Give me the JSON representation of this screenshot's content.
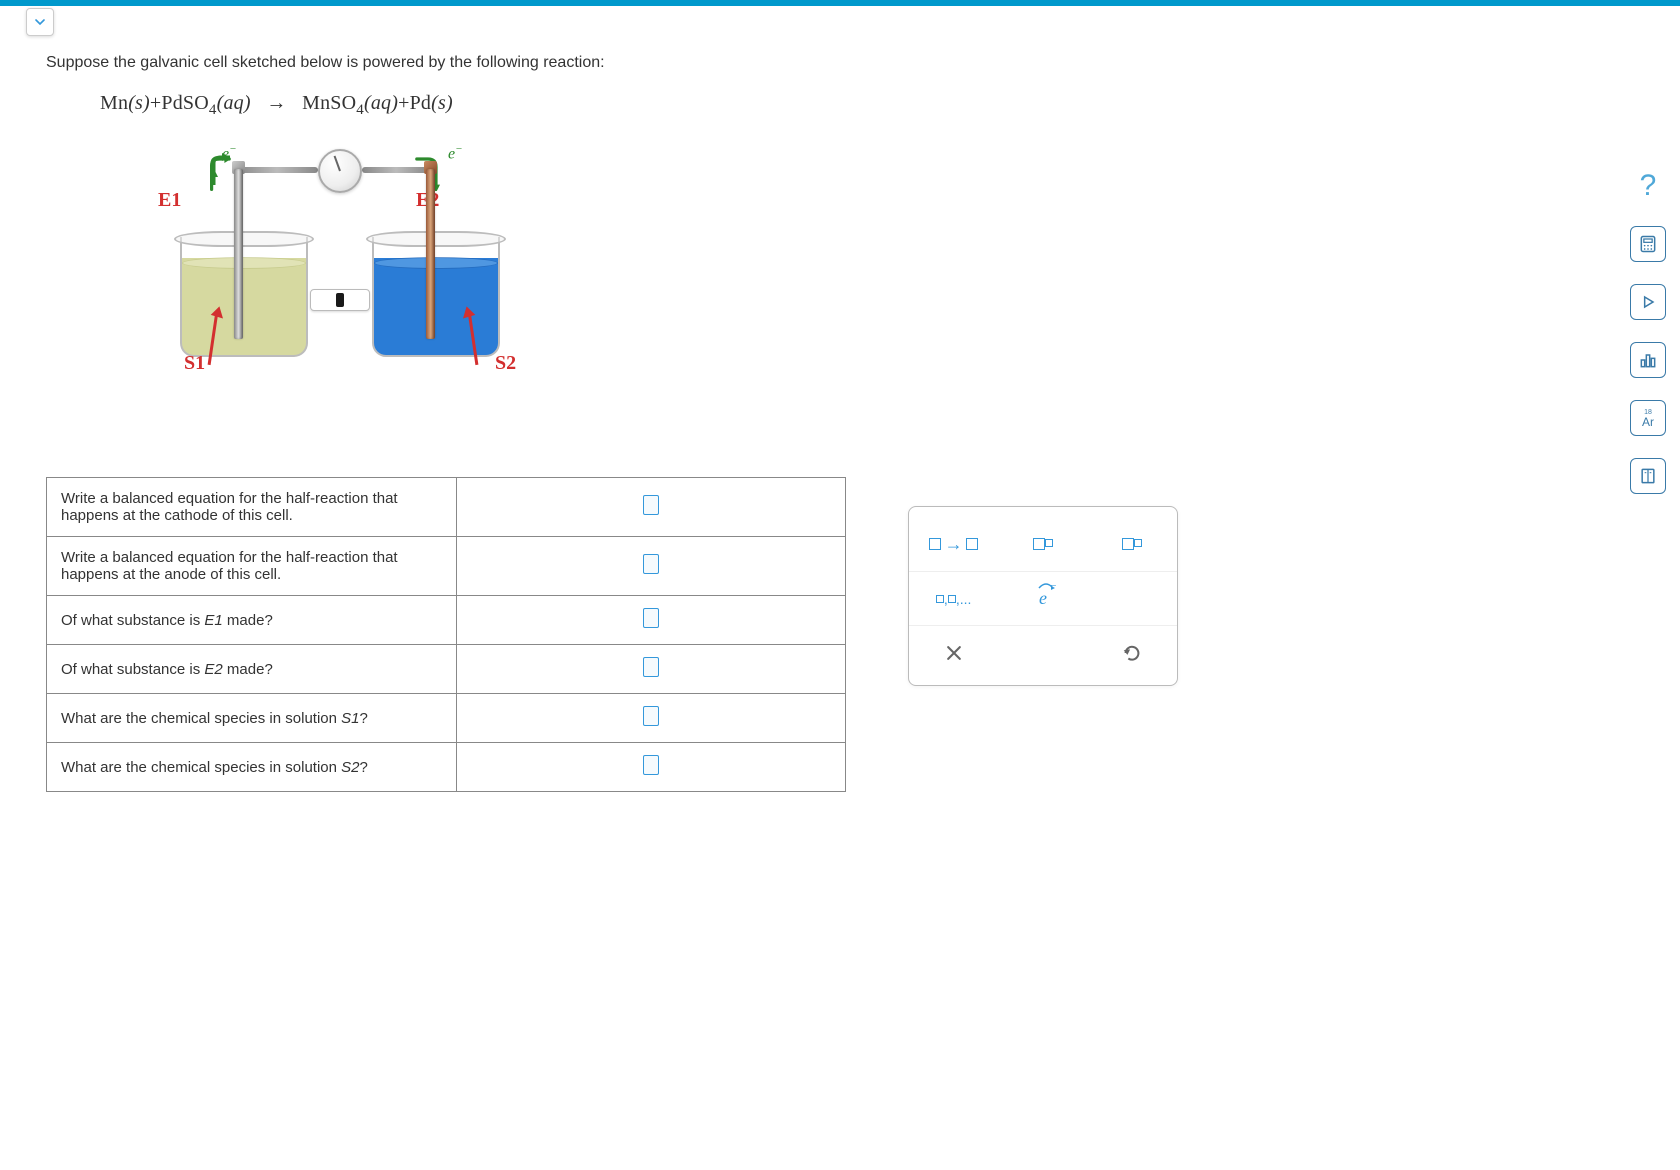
{
  "intro_text": "Suppose the galvanic cell sketched below is powered by the following reaction:",
  "equation": {
    "react1": "Mn",
    "state1": "(s)",
    "react2_pre": "PdSO",
    "react2_sub": "4",
    "state2": "(aq)",
    "prod1_pre": "MnSO",
    "prod1_sub": "4",
    "state3": "(aq)",
    "prod2": "Pd",
    "state4": "(s)"
  },
  "diagram": {
    "electron_label": "e",
    "E1": "E1",
    "E2": "E2",
    "S1": "S1",
    "S2": "S2",
    "colors": {
      "solution_left": "#d6d9a0",
      "solution_right": "#2a7cd6",
      "electrode_left": "#999999",
      "electrode_right": "#b07045",
      "electron_arrow": "#2d8a2d",
      "red_label": "#d32f2f",
      "red_arrow": "#d32f2f",
      "wire": "#999999"
    }
  },
  "questions": [
    {
      "prompt": "Write a balanced equation for the half-reaction that happens at the cathode of this cell."
    },
    {
      "prompt": "Write a balanced equation for the half-reaction that happens at the anode of this cell."
    },
    {
      "prompt_html": "Of what substance is <i>E1</i> made?"
    },
    {
      "prompt_html": "Of what substance is <i>E2</i> made?"
    },
    {
      "prompt_html": "What are the chemical species in solution <i>S1</i>?"
    },
    {
      "prompt_html": "What are the chemical species in solution <i>S2</i>?"
    }
  ],
  "toolbox": {
    "arrow_label": "☐→☐",
    "subscript_label": "☐☐",
    "superscript_label": "☐☐",
    "list_label": "☐,☐,...",
    "electron_label": "e",
    "clear_label": "×",
    "undo_label": "↺"
  },
  "side_tools": {
    "help": "?",
    "calculator": "calculator-icon",
    "play": "play-icon",
    "bars": "bars-icon",
    "periodic": "Ar",
    "keyboard": "keyboard-icon"
  },
  "colors": {
    "top_bar": "#0099cc",
    "accent": "#3498db",
    "border": "#888888",
    "side_tool": "#3a7aa8"
  }
}
